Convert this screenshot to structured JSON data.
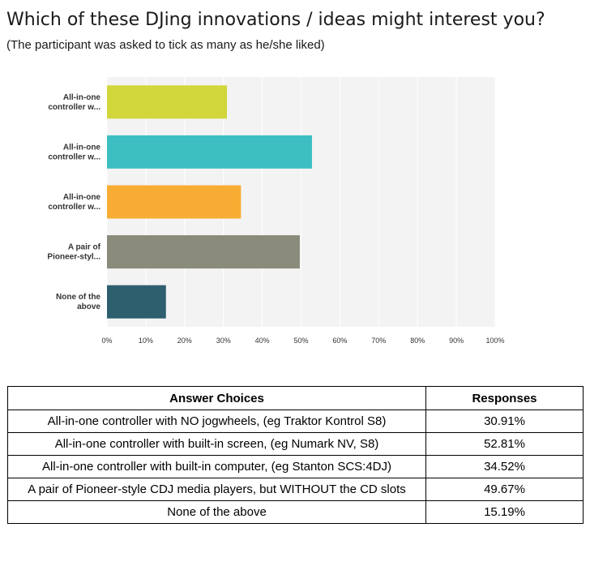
{
  "title": "Which of these DJing innovations / ideas might interest you?",
  "subtitle": "(The participant was asked to tick as many as he/she liked)",
  "chart_data": {
    "type": "bar",
    "orientation": "horizontal",
    "categories": [
      "All-in-one controller w...",
      "All-in-one controller w...",
      "All-in-one controller w...",
      "A pair of Pioneer-styl...",
      "None of the above"
    ],
    "label_lines": [
      [
        "All-in-one",
        "controller w..."
      ],
      [
        "All-in-one",
        "controller w..."
      ],
      [
        "All-in-one",
        "controller w..."
      ],
      [
        "A pair of",
        "Pioneer-styl..."
      ],
      [
        "None of the",
        "above"
      ]
    ],
    "values": [
      30.91,
      52.81,
      34.52,
      49.67,
      15.19
    ],
    "colors": [
      "#d1d63b",
      "#3dbfc2",
      "#f7ad33",
      "#8a8b7b",
      "#2e5f6f"
    ],
    "xlim": [
      0,
      100
    ],
    "ticks": [
      "0%",
      "10%",
      "20%",
      "30%",
      "40%",
      "50%",
      "60%",
      "70%",
      "80%",
      "90%",
      "100%"
    ],
    "grid": true,
    "background": "#f3f3f3",
    "title": "",
    "xlabel": "",
    "ylabel": ""
  },
  "table": {
    "headers": [
      "Answer Choices",
      "Responses"
    ],
    "rows": [
      {
        "choice": "All-in-one controller with NO jogwheels, (eg Traktor Kontrol S8)",
        "response": "30.91%"
      },
      {
        "choice": "All-in-one controller with built-in screen, (eg Numark NV, S8)",
        "response": "52.81%"
      },
      {
        "choice": "All-in-one controller with built-in computer, (eg Stanton SCS:4DJ)",
        "response": "34.52%"
      },
      {
        "choice": "A pair of Pioneer-style CDJ media players, but WITHOUT the CD slots",
        "response": "49.67%"
      },
      {
        "choice": "None of the above",
        "response": "15.19%"
      }
    ]
  }
}
